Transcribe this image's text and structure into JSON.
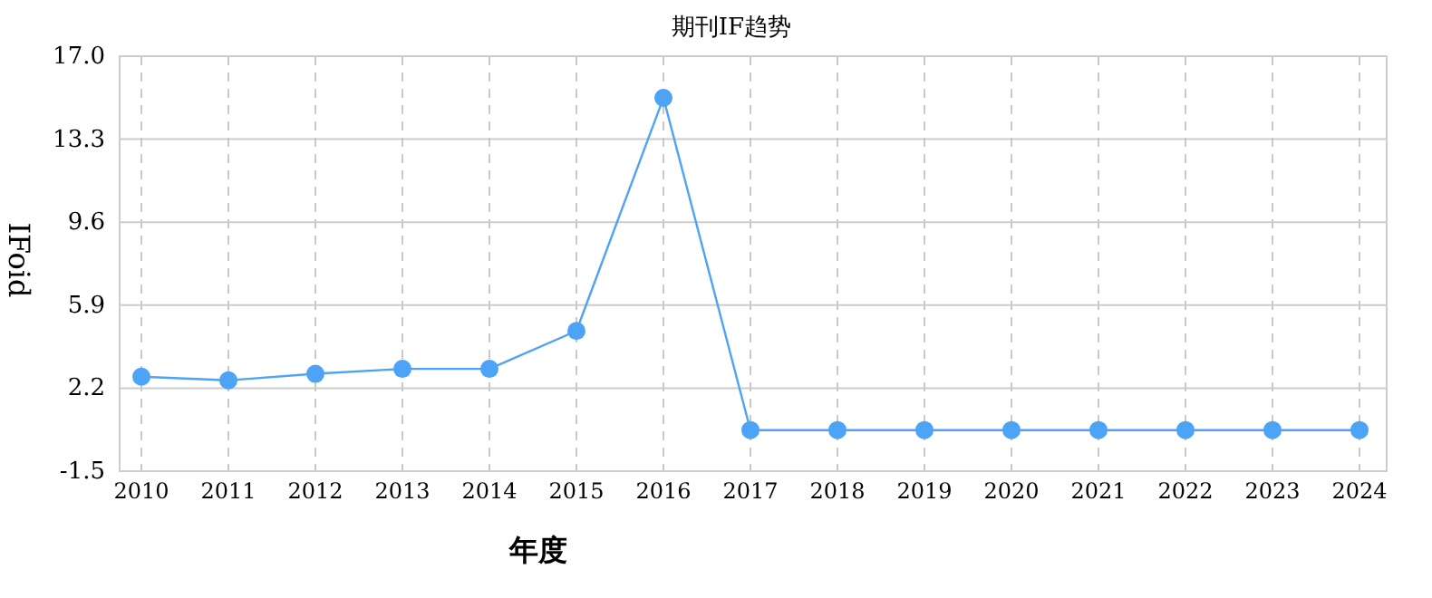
{
  "chart_data": {
    "type": "line",
    "title": "期刊IF趋势",
    "xlabel": "年度",
    "ylabel": "IFoid",
    "categories": [
      "2010",
      "2011",
      "2012",
      "2013",
      "2014",
      "2015",
      "2016",
      "2017",
      "2018",
      "2019",
      "2020",
      "2021",
      "2022",
      "2023",
      "2024"
    ],
    "values": [
      2.71,
      2.55,
      2.84,
      3.06,
      3.06,
      4.75,
      15.14,
      0.33,
      0.33,
      0.33,
      0.33,
      0.33,
      0.33,
      0.33,
      0.33
    ],
    "color": "#4da3f5",
    "ylim": [
      -1.5,
      17.0
    ],
    "yticks": [
      -1.5,
      2.2,
      5.9,
      9.6,
      13.3,
      {
        "value": 17.0,
        "label": "17.0"
      }
    ],
    "grid": true,
    "marker": "circle"
  }
}
